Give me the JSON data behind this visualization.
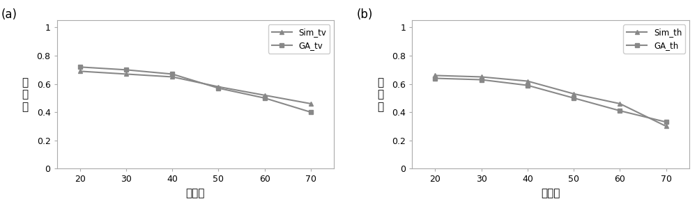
{
  "x": [
    20,
    30,
    40,
    50,
    60,
    70
  ],
  "sim_tv": [
    0.69,
    0.67,
    0.65,
    0.58,
    0.52,
    0.46
  ],
  "ga_tv": [
    0.72,
    0.7,
    0.67,
    0.57,
    0.5,
    0.4
  ],
  "sim_th": [
    0.66,
    0.65,
    0.62,
    0.53,
    0.46,
    0.3
  ],
  "ga_th": [
    0.64,
    0.63,
    0.59,
    0.5,
    0.41,
    0.33
  ],
  "xlabel": "高度角",
  "ylabel": "透过率",
  "label_a": "(a)",
  "label_b": "(b)",
  "legend_a": [
    "Sim_tv",
    "GA_tv"
  ],
  "legend_b": [
    "Sim_th",
    "GA_th"
  ],
  "ylim": [
    0,
    1.05
  ],
  "yticks": [
    0,
    0.2,
    0.4,
    0.6,
    0.8,
    1.0
  ],
  "ytick_labels": [
    "0",
    "0.2",
    "0.4",
    "0.6",
    "0.8",
    "1"
  ],
  "xticks": [
    20,
    30,
    40,
    50,
    60,
    70
  ],
  "line_color": "#888888",
  "marker_sim": "^",
  "marker_ga": "s",
  "linewidth": 1.5,
  "markersize": 5,
  "bg_color": "#ffffff",
  "spine_color": "#aaaaaa"
}
